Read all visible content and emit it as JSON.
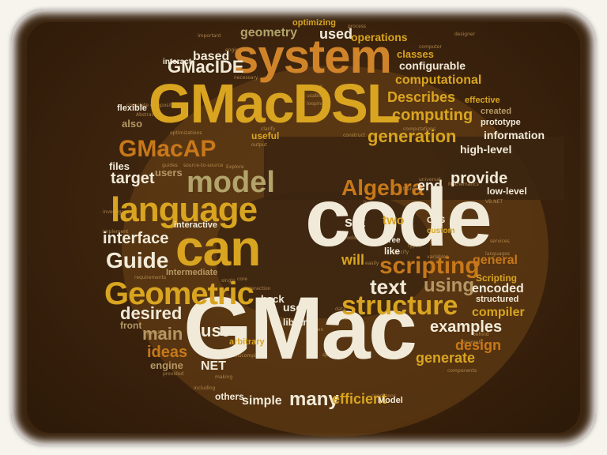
{
  "colors": {
    "background": "#3b2510",
    "cream": "#f1ead8",
    "gold": "#d9a520",
    "orange": "#c7781a",
    "tan": "#b59764",
    "olive": "#b2a46a"
  },
  "words": {
    "gmac": "GMac",
    "code": "code",
    "gmacdsl": "GMacDSL",
    "system": "system",
    "can": "can",
    "language": "language",
    "geometric": "Geometric",
    "model": "model",
    "gmacap": "GMacAP",
    "gmacide": "GMacIDE",
    "structure": "structure",
    "scripting": "scripting",
    "algebra": "Algebra",
    "guide": "Guide",
    "interface": "interface",
    "text": "text",
    "using": "using",
    "use": "use",
    "many": "many",
    "generation": "generation",
    "computing": "computing",
    "describes": "Describes",
    "computational": "computational",
    "provide": "provide",
    "desired": "desired",
    "target": "target",
    "main": "main",
    "ideas": "ideas",
    "examples": "examples",
    "design": "design",
    "generate": "generate",
    "encoded": "encoded",
    "general": "general",
    "compiler": "compiler",
    "efficient": "efficient",
    "simple": "simple",
    "geometry": "geometry",
    "used": "used",
    "operations": "operations",
    "based": "based",
    "information": "information",
    "high_level": "high-level",
    "configurable": "configurable",
    "classes": "classes",
    "optimizing": "optimizing",
    "also": "also",
    "files": "files",
    "users": "users",
    "end": "end",
    "set": "set",
    "two": "two",
    "will": "will",
    "net": "NET",
    "user": "user",
    "library": "library",
    "front": "front",
    "engine": "engine",
    "others": "others",
    "model_small": "Model",
    "interactive": "interactive",
    "intermediate": "Intermediate",
    "back": "back",
    "scripting_cap": "Scripting",
    "structured": "structured",
    "low_level": "low-level",
    "prototype": "prototype",
    "created": "created",
    "effective": "effective",
    "cas": "CAS",
    "custom": "custom",
    "like": "like",
    "tree": "Tree",
    "useful": "useful",
    "flexible": "flexible",
    "interact": "interact",
    "important": "important",
    "designer": "designer",
    "process": "process",
    "computer": "computer",
    "explore": "Explore",
    "guides": "guides",
    "source_to_source": "source-to-source",
    "arbitrary": "arbitrary",
    "possible": "possible",
    "provided": "provided",
    "writen": "written",
    "specifically": "specifically",
    "components": "components",
    "mathematics": "Mathematics",
    "translate": "translate",
    "universal": "universal",
    "services": "services",
    "languages": "languages",
    "vb_net": "VB.NET",
    "necessary": "necessary",
    "optimizations": "optimizations",
    "composition": "composition",
    "investigate": "investigate",
    "requirements": "requirements",
    "implement": "implement",
    "complete": "complete",
    "abstract": "Abstract",
    "syntax": "Syntax",
    "computations": "computations",
    "usable": "usable",
    "looping": "looping",
    "source": "source",
    "behind": "behind",
    "example": "example",
    "conditions": "conditions",
    "engineering": "engineering",
    "core": "core",
    "single": "single",
    "interaction": "interaction",
    "transcompiler": "transcompiler",
    "including": "including",
    "making": "making",
    "easily": "easily",
    "gives": "gives",
    "data": "data",
    "tools": "tools",
    "look": "look",
    "uses": "uses",
    "see": "see",
    "types": "types",
    "variables": "variables",
    "specify": "specify",
    "output": "output",
    "construct": "construct",
    "clarify": "clarify"
  }
}
